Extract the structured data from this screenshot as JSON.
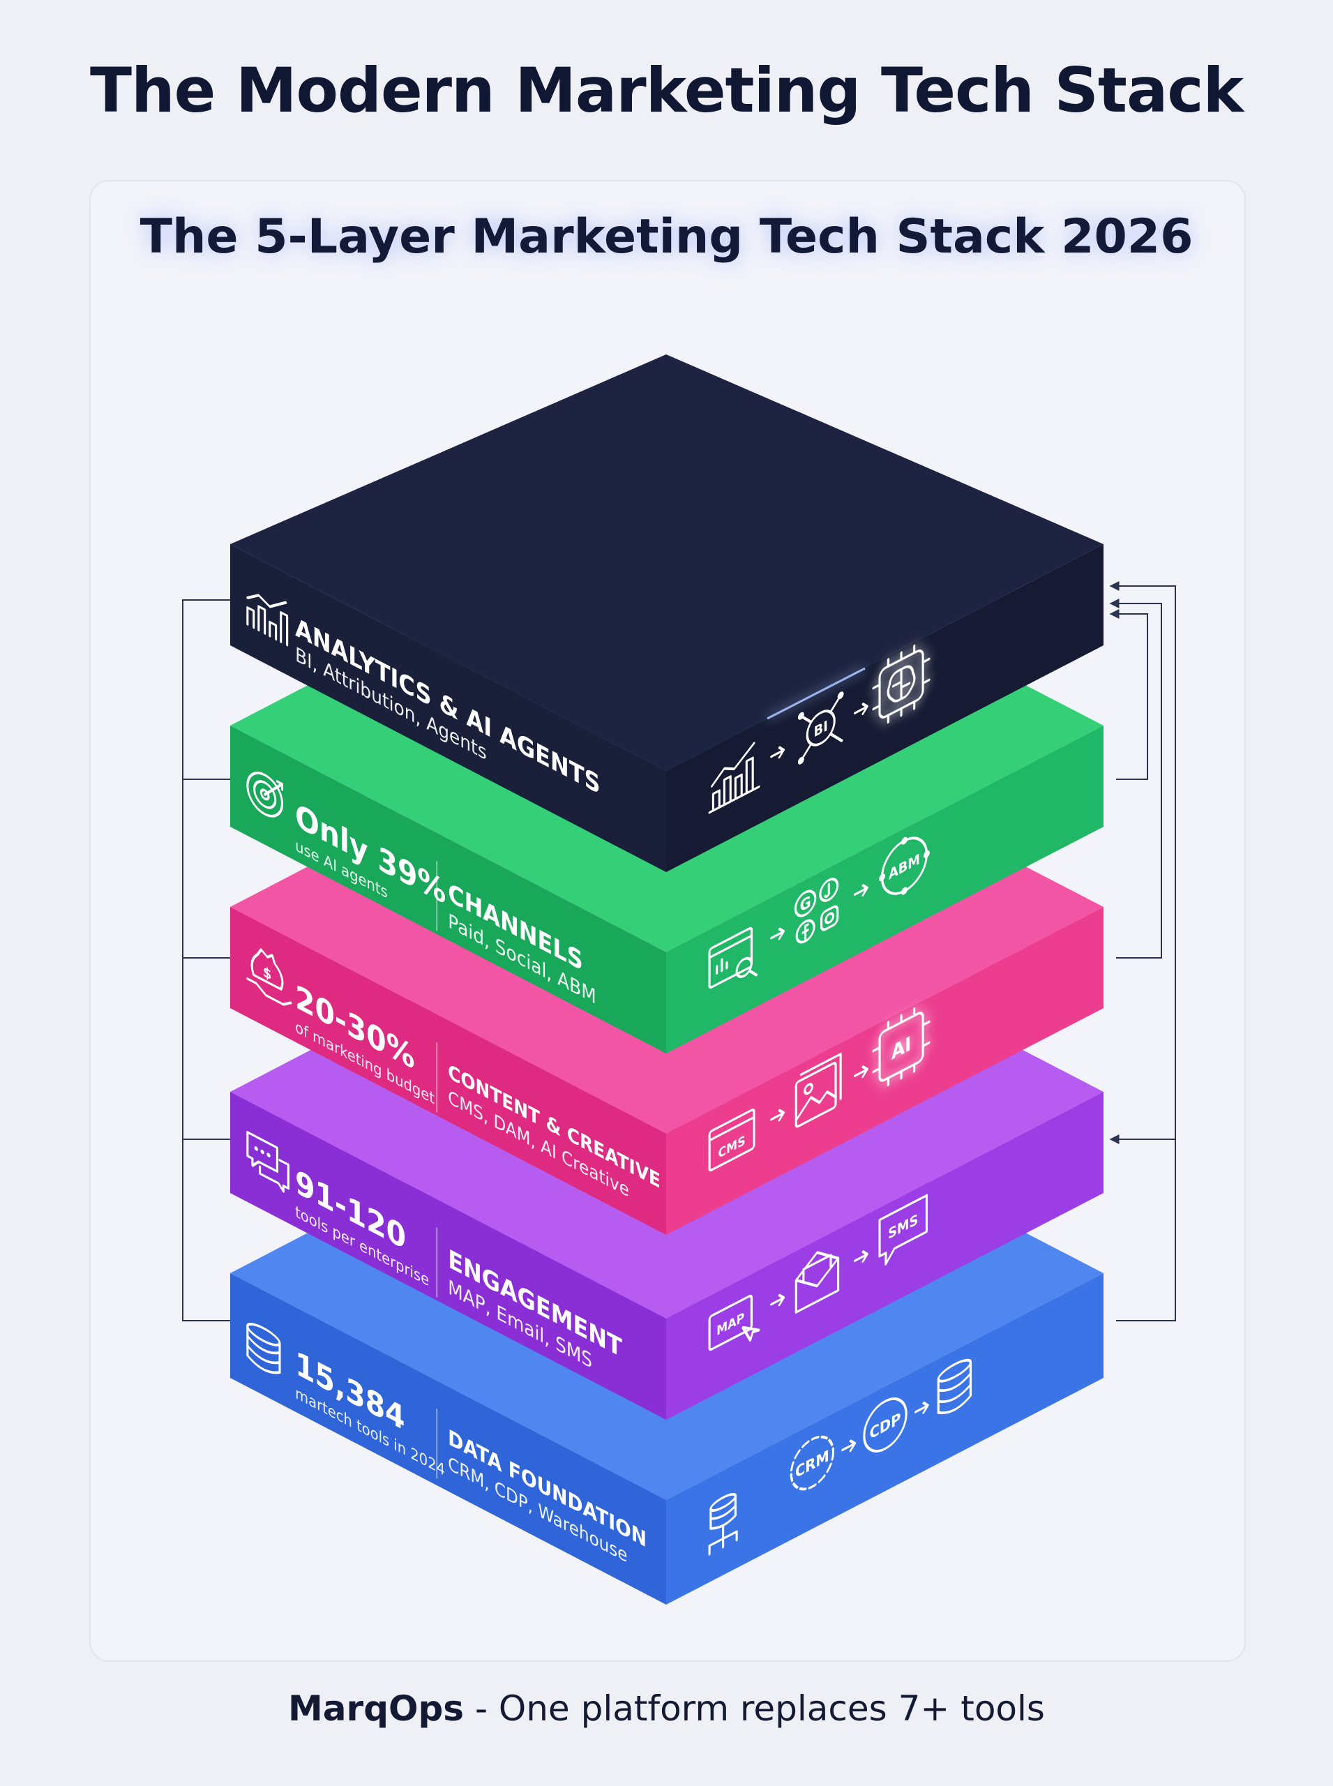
{
  "header": {
    "title": "The Modern Marketing Tech Stack"
  },
  "card": {
    "title": "The 5-Layer Marketing Tech Stack 2026"
  },
  "layers": [
    {
      "id": "data",
      "title": "DATA FOUNDATION",
      "subtitle": "CRM, CDP, Warehouse",
      "stat": "15,384",
      "stat_sub": "martech tools in 2024",
      "color_top": "#4f86f0",
      "color_left": "#2f65d8",
      "color_right": "#3b74e6",
      "icon_labels": [
        "CRM",
        "CDP"
      ]
    },
    {
      "id": "engagement",
      "title": "ENGAGEMENT",
      "subtitle": "MAP, Email, SMS",
      "stat": "91-120",
      "stat_sub": "tools per enterprise",
      "color_top": "#b65cf0",
      "color_left": "#8a2fd6",
      "color_right": "#9c3ee6",
      "icon_labels": [
        "MAP",
        "SMS"
      ]
    },
    {
      "id": "content",
      "title": "CONTENT & CREATIVE",
      "subtitle": "CMS, DAM, AI Creative",
      "stat": "20-30%",
      "stat_sub": "of marketing budget",
      "color_top": "#f255a4",
      "color_left": "#de2a80",
      "color_right": "#ec3d8f",
      "icon_labels": [
        "CMS",
        "AI"
      ]
    },
    {
      "id": "channels",
      "title": "CHANNELS",
      "subtitle": "Paid, Social, ABM",
      "stat": "Only 39%",
      "stat_sub": "use AI agents",
      "color_top": "#35cf78",
      "color_left": "#19a85a",
      "color_right": "#20b866",
      "icon_labels": [
        "G",
        "ABM"
      ]
    },
    {
      "id": "analytics",
      "title": "ANALYTICS & AI AGENTS",
      "subtitle": "BI, Attribution, Agents",
      "stat": "",
      "stat_sub": "",
      "color_top": "#1d2340",
      "color_left": "#1a1f3a",
      "color_right": "#161b33",
      "icon_labels": [
        "BI"
      ]
    }
  ],
  "footer": {
    "brand": "MarqOps",
    "text": " - One platform replaces 7+ tools"
  }
}
